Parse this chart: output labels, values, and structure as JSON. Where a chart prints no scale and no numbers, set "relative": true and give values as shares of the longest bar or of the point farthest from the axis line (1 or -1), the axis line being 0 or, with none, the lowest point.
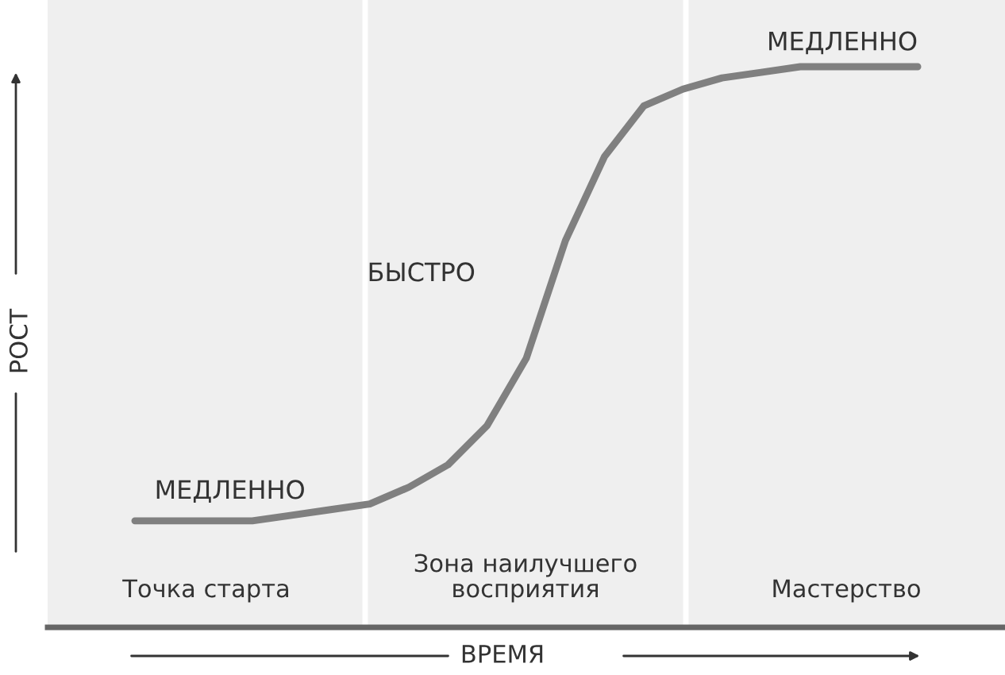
{
  "chart_data": {
    "type": "line",
    "relative": true,
    "xlabel": "ВРЕМЯ",
    "ylabel": "РОСТ",
    "categories": [
      null,
      null,
      null,
      null,
      null,
      null,
      null,
      null,
      null,
      null,
      null,
      null,
      null,
      null,
      null,
      null,
      null,
      null,
      null,
      null,
      null
    ],
    "series": [
      {
        "color": "#808080",
        "values": [
          0.19,
          0.19,
          0.19,
          0.19,
          0.2,
          0.21,
          0.22,
          0.25,
          0.29,
          0.36,
          0.48,
          0.69,
          0.84,
          0.93,
          0.96,
          0.98,
          0.99,
          1,
          1,
          1,
          1
        ]
      }
    ],
    "annotations": [
      "МЕДЛЕННО",
      "БЫСТРО",
      "МЕДЛЕННО",
      "Точка старта",
      "Зона наилучшего\nвосприятия",
      "Мастерство"
    ],
    "legend": false
  }
}
